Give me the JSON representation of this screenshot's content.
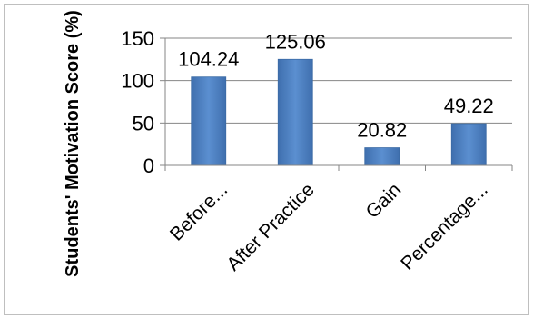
{
  "chart_data": {
    "type": "bar",
    "categories": [
      "Before...",
      "After Practice",
      "Gain",
      "Percentage..."
    ],
    "values": [
      104.24,
      125.06,
      20.82,
      49.22
    ],
    "data_labels": [
      "104.24",
      "125.06",
      "20.82",
      "49.22"
    ],
    "ylabel": "Students' Motivation Score (%)",
    "ylim": [
      0,
      150
    ],
    "yticks": [
      0,
      50,
      100,
      150
    ],
    "gridlines": true,
    "legend": "none",
    "bar_color": "#4a7ebb"
  }
}
